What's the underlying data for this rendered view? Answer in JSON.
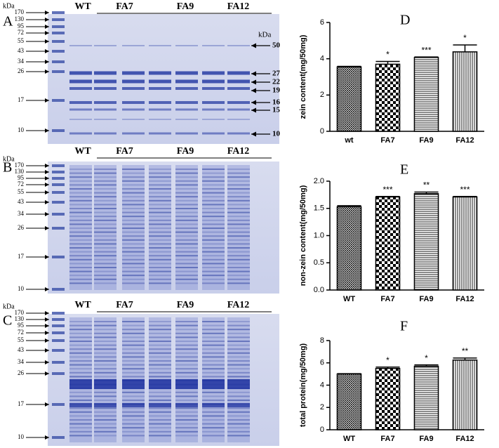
{
  "gels": [
    {
      "panel": "A",
      "left_unit": "kDa",
      "left_markers": [
        170,
        130,
        95,
        72,
        55,
        43,
        34,
        26,
        17,
        10
      ],
      "lanes": [
        "WT",
        "FA7",
        "FA9",
        "FA12"
      ],
      "right_unit": "kDa",
      "right_markers": [
        50,
        27,
        22,
        19,
        16,
        15,
        10
      ]
    },
    {
      "panel": "B",
      "left_unit": "kDa",
      "left_markers": [
        170,
        130,
        95,
        72,
        55,
        43,
        34,
        26,
        17,
        10
      ],
      "lanes": [
        "WT",
        "FA7",
        "FA9",
        "FA12"
      ]
    },
    {
      "panel": "C",
      "left_unit": "kDa",
      "left_markers": [
        170,
        130,
        95,
        72,
        55,
        43,
        34,
        26,
        17,
        10
      ],
      "lanes": [
        "WT",
        "FA7",
        "FA9",
        "FA12"
      ]
    }
  ],
  "chart_data": [
    {
      "type": "bar",
      "panel": "D",
      "y_label": "zein content(mg/50mg)",
      "categories": [
        "wt",
        "FA7",
        "FA9",
        "FA12"
      ],
      "values": [
        3.55,
        3.7,
        4.07,
        4.38
      ],
      "errors": [
        0.03,
        0.15,
        0.03,
        0.38
      ],
      "significance": [
        null,
        "*",
        "***",
        "*"
      ],
      "patterns": [
        "crosshatch",
        "checker",
        "horizontal",
        "vertical"
      ],
      "color": "#000000",
      "ylim": [
        0,
        6
      ],
      "yticks": [
        0,
        2,
        4,
        6
      ]
    },
    {
      "type": "bar",
      "panel": "E",
      "y_label": "non-zein content(mg/50mg)",
      "categories": [
        "WT",
        "FA7",
        "FA9",
        "FA12"
      ],
      "values": [
        1.53,
        1.71,
        1.77,
        1.71
      ],
      "errors": [
        0.02,
        0.01,
        0.03,
        0.01
      ],
      "significance": [
        null,
        "***",
        "**",
        "***"
      ],
      "patterns": [
        "crosshatch",
        "checker",
        "horizontal",
        "vertical"
      ],
      "color": "#000000",
      "ylim": [
        0,
        2
      ],
      "yticks": [
        {
          "value": 0,
          "label": "0.0"
        },
        0.5,
        {
          "value": 1,
          "label": "1.0"
        },
        1.5,
        {
          "value": 2,
          "label": "2.0"
        }
      ]
    },
    {
      "type": "bar",
      "panel": "F",
      "y_label": "total protein(mg/50mg)",
      "categories": [
        "WT",
        "FA7",
        "FA9",
        "FA12"
      ],
      "values": [
        5.0,
        5.5,
        5.7,
        6.25
      ],
      "errors": [
        0.03,
        0.12,
        0.12,
        0.18
      ],
      "significance": [
        null,
        "*",
        "*",
        "**"
      ],
      "patterns": [
        "crosshatch",
        "checker",
        "horizontal",
        "vertical"
      ],
      "color": "#000000",
      "ylim": [
        0,
        8
      ],
      "yticks": [
        0,
        2,
        4,
        6,
        8
      ]
    }
  ]
}
